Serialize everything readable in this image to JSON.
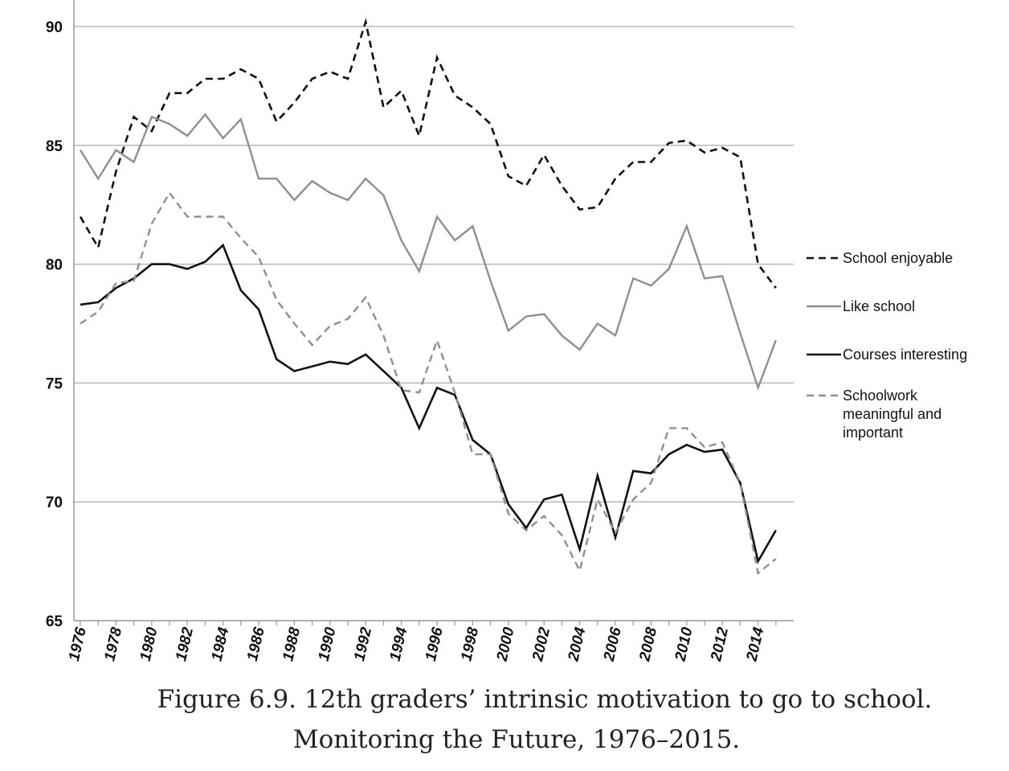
{
  "caption": {
    "line1": "Figure 6.9. 12th graders’ intrinsic motivation to go to school.",
    "line2": "Monitoring the Future, 1976–2015."
  },
  "chart_data": {
    "type": "line",
    "title": "",
    "xlabel": "",
    "ylabel": "",
    "ylim": [
      65,
      90
    ],
    "yticks": [
      "65",
      "70",
      "75",
      "80",
      "85",
      "90"
    ],
    "xlim": [
      1976,
      2015
    ],
    "xticks": [
      "1976",
      "1978",
      "1980",
      "1982",
      "1984",
      "1986",
      "1988",
      "1990",
      "1992",
      "1994",
      "1996",
      "1998",
      "2000",
      "2002",
      "2004",
      "2006",
      "2008",
      "2010",
      "2012",
      "2014"
    ],
    "grid": "horizontal",
    "legend_position": "right",
    "x": [
      1976,
      1977,
      1978,
      1979,
      1980,
      1981,
      1982,
      1983,
      1984,
      1985,
      1986,
      1987,
      1988,
      1989,
      1990,
      1991,
      1992,
      1993,
      1994,
      1995,
      1996,
      1997,
      1998,
      1999,
      2000,
      2001,
      2002,
      2003,
      2004,
      2005,
      2006,
      2007,
      2008,
      2009,
      2010,
      2011,
      2012,
      2013,
      2014,
      2015
    ],
    "series": [
      {
        "name": "School enjoyable",
        "color": "#111111",
        "dash": "dashed",
        "values": [
          82.0,
          80.7,
          83.9,
          86.2,
          85.6,
          87.2,
          87.2,
          87.8,
          87.8,
          88.2,
          87.8,
          86.0,
          86.8,
          87.8,
          88.1,
          87.8,
          90.2,
          86.6,
          87.3,
          85.4,
          88.7,
          87.1,
          86.6,
          85.9,
          83.7,
          83.3,
          84.6,
          83.3,
          82.3,
          82.4,
          83.6,
          84.3,
          84.3,
          85.1,
          85.2,
          84.7,
          84.9,
          84.5,
          80.0,
          79.0
        ]
      },
      {
        "name": "Like school",
        "color": "#8f8f8f",
        "dash": "solid",
        "values": [
          84.8,
          83.6,
          84.8,
          84.3,
          86.2,
          85.9,
          85.4,
          86.3,
          85.3,
          86.1,
          83.6,
          83.6,
          82.7,
          83.5,
          83.0,
          82.7,
          83.6,
          82.9,
          81.0,
          79.7,
          82.0,
          81.0,
          81.6,
          79.3,
          77.2,
          77.8,
          77.9,
          77.0,
          76.4,
          77.5,
          77.0,
          79.4,
          79.1,
          79.8,
          81.6,
          79.4,
          79.5,
          77.1,
          74.8,
          76.8
        ]
      },
      {
        "name": "Courses interesting",
        "color": "#111111",
        "dash": "solid",
        "values": [
          78.3,
          78.4,
          79.0,
          79.4,
          80.0,
          80.0,
          79.8,
          80.1,
          80.8,
          78.9,
          78.1,
          76.0,
          75.5,
          75.7,
          75.9,
          75.8,
          76.2,
          75.5,
          74.8,
          73.1,
          74.8,
          74.5,
          72.6,
          72.0,
          69.9,
          68.9,
          70.1,
          70.3,
          68.0,
          71.1,
          68.5,
          71.3,
          71.2,
          72.0,
          72.4,
          72.1,
          72.2,
          70.8,
          67.5,
          68.8
        ]
      },
      {
        "name": "Schoolwork meaningful and important",
        "color": "#8f8f8f",
        "dash": "dashed",
        "values": [
          77.5,
          78.0,
          79.2,
          79.3,
          81.7,
          83.0,
          82.0,
          82.0,
          82.0,
          81.1,
          80.3,
          78.5,
          77.5,
          76.6,
          77.4,
          77.7,
          78.6,
          77.0,
          74.7,
          74.6,
          76.8,
          74.6,
          72.0,
          72.0,
          69.5,
          68.8,
          69.4,
          68.6,
          67.1,
          70.1,
          68.7,
          70.1,
          70.8,
          73.1,
          73.1,
          72.3,
          72.5,
          70.8,
          67.0,
          67.6
        ]
      }
    ]
  }
}
